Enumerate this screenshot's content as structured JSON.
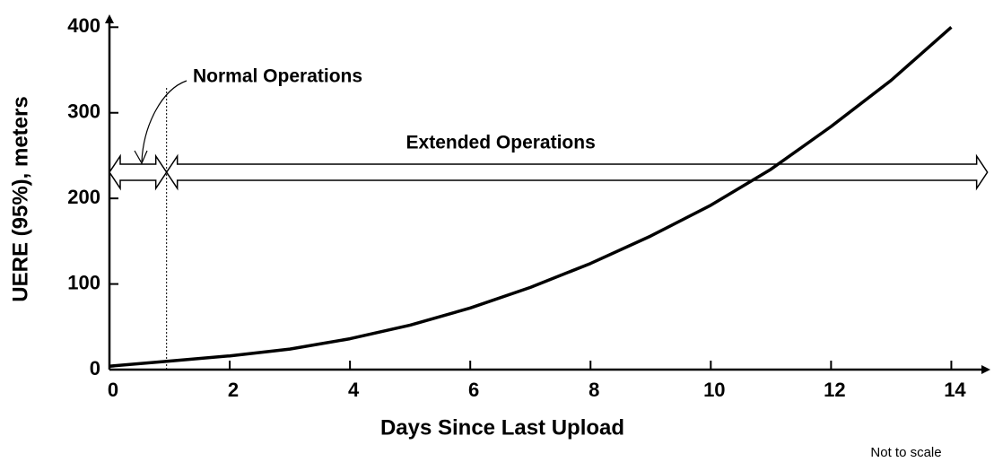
{
  "chart_data": {
    "type": "line",
    "x_label": "Days Since Last Upload",
    "y_label": "UERE (95%), meters",
    "note": "Not to scale",
    "x": [
      0,
      1,
      2,
      3,
      4,
      5,
      6,
      7,
      8,
      9,
      10,
      11,
      12,
      13,
      14
    ],
    "series": [
      {
        "color": "#000000",
        "values": [
          4,
          10,
          16,
          24,
          36,
          52,
          72,
          96,
          124,
          156,
          192,
          234,
          284,
          338,
          400
        ]
      }
    ],
    "xlim": [
      0,
      14.65
    ],
    "ylim": [
      0,
      415
    ],
    "xticks": [
      0,
      2,
      4,
      6,
      8,
      10,
      12,
      14
    ],
    "yticks": [
      0,
      100,
      200,
      300,
      400
    ],
    "regions": [
      {
        "label": "Normal Operations",
        "x": [
          0,
          0.95
        ]
      },
      {
        "label": "Extended Operations",
        "x": [
          0.95,
          14.6
        ]
      }
    ]
  }
}
